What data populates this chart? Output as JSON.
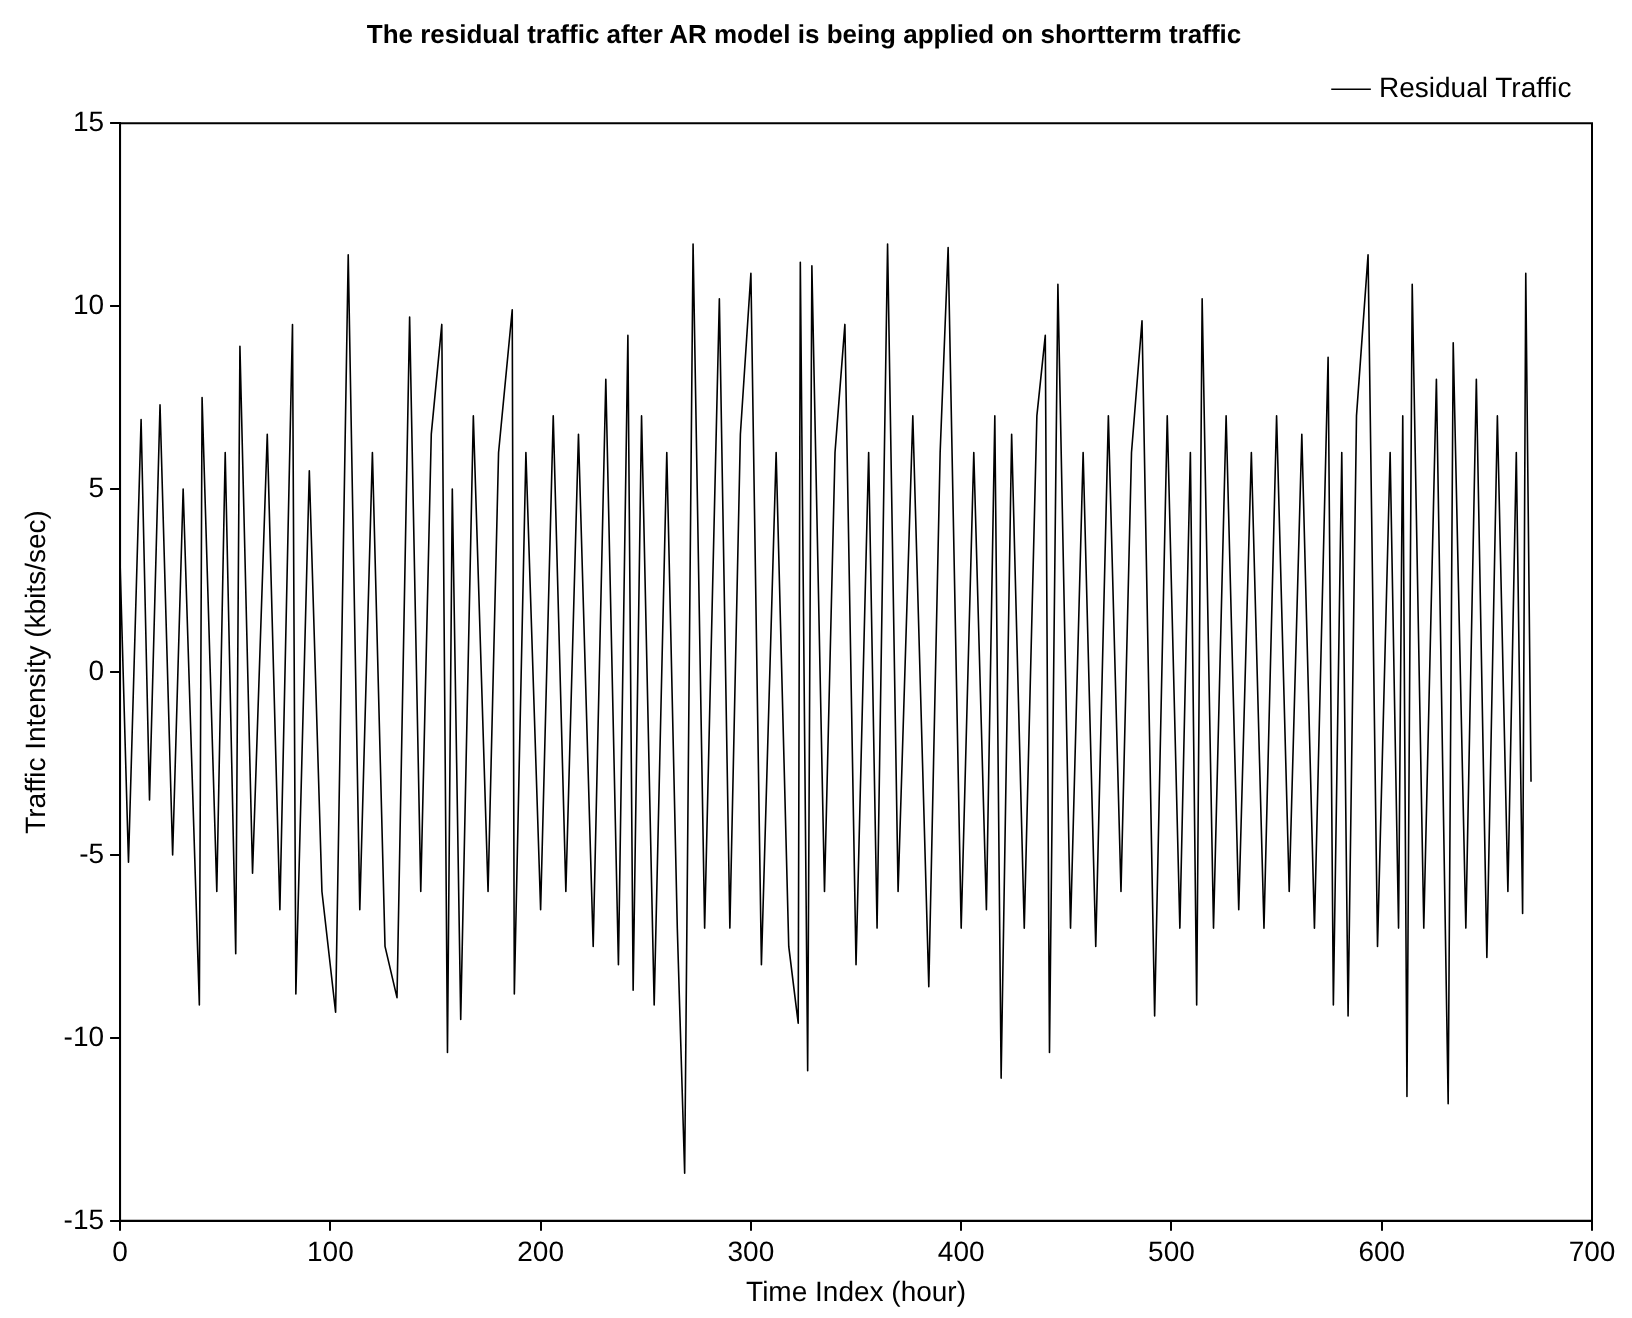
{
  "chart_data": {
    "type": "line",
    "title": "The residual traffic after AR model is being applied on shortterm traffic",
    "xlabel": "Time Index (hour)",
    "ylabel": "Traffic Intensity (kbits/sec)",
    "xlim": [
      0,
      700
    ],
    "xticks": [
      0,
      100,
      200,
      300,
      400,
      500,
      600,
      700
    ],
    "ylim": [
      -15,
      15
    ],
    "yticks": [
      -15,
      -10,
      -5,
      0,
      5,
      10,
      15
    ],
    "grid": false,
    "legend": "top right",
    "marker": "none",
    "line_style": "solid",
    "series": [
      {
        "name": "Residual Traffic",
        "color": "#000000",
        "x": [
          0,
          4,
          10,
          14,
          19,
          25,
          30,
          37.7,
          39,
          46,
          50,
          55,
          57,
          63,
          70,
          76,
          82,
          83.6,
          90,
          96,
          102.5,
          108.5,
          114,
          120,
          126,
          131.7,
          137.7,
          143,
          148,
          153,
          155.7,
          158,
          162,
          168,
          175,
          180,
          186.5,
          187.5,
          193,
          200,
          206,
          212,
          218,
          225,
          231,
          237,
          241.5,
          244,
          248,
          254,
          260,
          265,
          268.5,
          272.5,
          278,
          285,
          290,
          295,
          300,
          305,
          312,
          318,
          322.5,
          323.5,
          327,
          329,
          335,
          340,
          344.7,
          350,
          356,
          360,
          365,
          370,
          377,
          384.6,
          390,
          393.8,
          400,
          406,
          412,
          416,
          419,
          424,
          430,
          436,
          440,
          442,
          446,
          452,
          458,
          464,
          470,
          476,
          481,
          486,
          492,
          498,
          504,
          509,
          512,
          514.6,
          520,
          526,
          532,
          538,
          544,
          550,
          556,
          562,
          568,
          574.5,
          577,
          581,
          584,
          588,
          593.5,
          598,
          604,
          608,
          610,
          612,
          614.5,
          620,
          626,
          631.6,
          634,
          640,
          645,
          650,
          655,
          660,
          664,
          667,
          668.5,
          671
        ],
        "values": [
          3,
          -5.2,
          6.9,
          -3.5,
          7.3,
          -5,
          5,
          -9.1,
          7.5,
          -6,
          6,
          -7.7,
          8.9,
          -5.5,
          6.5,
          -6.5,
          9.5,
          -8.8,
          5.5,
          -6,
          -9.3,
          11.4,
          -6.5,
          6,
          -7.5,
          -8.9,
          9.7,
          -6,
          6.5,
          9.5,
          -10.4,
          5,
          -9.5,
          7,
          -6,
          6,
          9.9,
          -8.8,
          6,
          -6.5,
          7,
          -6,
          6.5,
          -7.5,
          8,
          -8,
          9.2,
          -8.7,
          7,
          -9.1,
          6,
          -7,
          -13.7,
          11.7,
          -7,
          10.2,
          -7,
          6.5,
          10.9,
          -8,
          6,
          -7.5,
          -9.6,
          11.2,
          -10.9,
          11.1,
          -6,
          6,
          9.5,
          -8,
          6,
          -7,
          11.7,
          -6,
          7,
          -8.6,
          6,
          11.6,
          -7,
          6,
          -6.5,
          7,
          -11.1,
          6.5,
          -7,
          7,
          9.2,
          -10.4,
          10.6,
          -7,
          6,
          -7.5,
          7,
          -6,
          6,
          9.6,
          -9.4,
          7,
          -7,
          6,
          -9.1,
          10.2,
          -7,
          7,
          -6.5,
          6,
          -7,
          7,
          -6,
          6.5,
          -7,
          8.6,
          -9.1,
          6,
          -9.4,
          7,
          11.4,
          -7.5,
          6,
          -7,
          7,
          -11.6,
          10.6,
          -7,
          8,
          -11.8,
          9,
          -7,
          8,
          -7.8,
          7,
          -6,
          6,
          -6.6,
          10.9,
          -3
        ]
      }
    ]
  }
}
